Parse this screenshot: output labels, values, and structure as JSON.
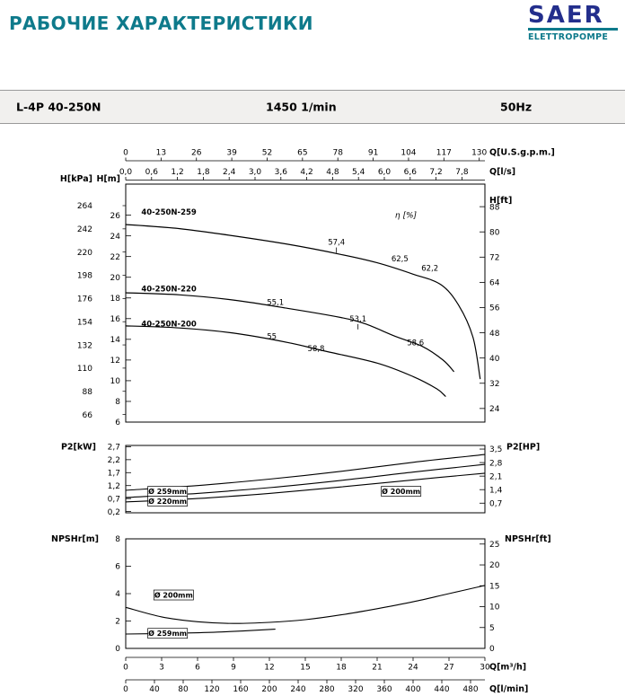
{
  "meta": {
    "title": "РАБОЧИЕ ХАРАКТЕРИСТИКИ",
    "logo": {
      "name": "SAER",
      "sub": "ELETTROPOMPE"
    },
    "header": {
      "model": "L-4P 40-250N",
      "speed": "1450 1/min",
      "frequency": "50Hz"
    },
    "colors": {
      "accent_teal": "#0e7a8b",
      "logo_blue": "#232e8c",
      "line": "#000000",
      "header_bg": "#f1f0ee"
    }
  },
  "chart_data": [
    {
      "id": "head-flow",
      "type": "line",
      "x_domain_m3h": [
        0,
        30
      ],
      "y_domain_m": [
        6,
        29
      ],
      "axes": {
        "top_gpm": {
          "title": "Q[U.S.g.p.m.]",
          "to_m3h": 0.227125,
          "values": [
            0,
            13,
            26,
            39,
            52,
            65,
            78,
            91,
            104,
            117,
            130
          ]
        },
        "top_ls": {
          "title": "Q[l/s]",
          "to_m3h": 3.6,
          "values": [
            0,
            0.6,
            1.2,
            1.8,
            2.4,
            3,
            3.6,
            4.2,
            4.8,
            5.4,
            6,
            6.6,
            7.2,
            7.8
          ],
          "labels": [
            "0,0",
            "0,6",
            "1,2",
            "1,8",
            "2,4",
            "3,0",
            "3,6",
            "4,2",
            "4,8",
            "5,4",
            "6,0",
            "6,6",
            "7,2",
            "7,8"
          ]
        },
        "left_kpa": {
          "title": "H[kPa]",
          "to_m": 0.101972,
          "values": [
            66,
            88,
            110,
            132,
            154,
            176,
            198,
            220,
            242,
            264
          ]
        },
        "left_m": {
          "title": "H[m]",
          "values": [
            6,
            8,
            10,
            12,
            14,
            16,
            18,
            20,
            22,
            24,
            26
          ]
        },
        "right_ft": {
          "title": "H[ft]",
          "to_m": 0.3048,
          "values": [
            24,
            32,
            40,
            48,
            56,
            64,
            72,
            80,
            88
          ]
        }
      },
      "series": [
        {
          "name": "40-250N-259",
          "points": [
            [
              0,
              25.1
            ],
            [
              4.5,
              24.7
            ],
            [
              9,
              24.0
            ],
            [
              13.5,
              23.2
            ],
            [
              18,
              22.2
            ],
            [
              21,
              21.4
            ],
            [
              24,
              20.3
            ],
            [
              26.3,
              19.3
            ],
            [
              27.8,
              17.3
            ],
            [
              29,
              14.2
            ],
            [
              29.6,
              10.2
            ]
          ]
        },
        {
          "name": "40-250N-220",
          "points": [
            [
              0,
              18.5
            ],
            [
              4.5,
              18.3
            ],
            [
              9,
              17.8
            ],
            [
              13.5,
              17.0
            ],
            [
              18,
              16.1
            ],
            [
              20,
              15.5
            ],
            [
              22.5,
              14.3
            ],
            [
              24.8,
              13.3
            ],
            [
              26.5,
              12.0
            ],
            [
              27.4,
              10.9
            ]
          ]
        },
        {
          "name": "40-250N-200",
          "points": [
            [
              0,
              15.3
            ],
            [
              4.5,
              15.1
            ],
            [
              9,
              14.6
            ],
            [
              13.5,
              13.7
            ],
            [
              16.5,
              12.9
            ],
            [
              21,
              11.7
            ],
            [
              24,
              10.4
            ],
            [
              26,
              9.2
            ],
            [
              26.7,
              8.5
            ]
          ]
        }
      ],
      "curve_labels": [
        {
          "text": "40-250N-259",
          "q": 1.3,
          "v": 26.3
        },
        {
          "text": "40-250N-220",
          "q": 1.3,
          "v": 18.9
        },
        {
          "text": "40-250N-200",
          "q": 1.3,
          "v": 15.5
        }
      ],
      "eta_label": {
        "text": "η [%]",
        "q": 23.4,
        "v": 26.0
      },
      "efficiency_points": [
        {
          "text": "57,4",
          "q": 17.6,
          "v": 23.4,
          "tick": true
        },
        {
          "text": "62,5",
          "q": 22.9,
          "v": 21.8
        },
        {
          "text": "62,2",
          "q": 25.4,
          "v": 20.9
        },
        {
          "text": "55,1",
          "q": 12.5,
          "v": 17.6
        },
        {
          "text": "53,1",
          "q": 19.4,
          "v": 16.0,
          "tick": true
        },
        {
          "text": "55",
          "q": 12.2,
          "v": 14.3
        },
        {
          "text": "58,8",
          "q": 15.9,
          "v": 13.1
        },
        {
          "text": "58,6",
          "q": 24.2,
          "v": 13.7
        }
      ]
    },
    {
      "id": "power",
      "type": "line",
      "y_domain_kw": [
        0.15,
        2.75
      ],
      "axes": {
        "left_kw": {
          "title": "P2[kW]",
          "values": [
            0.2,
            0.7,
            1.2,
            1.7,
            2.2,
            2.7
          ],
          "labels": [
            "0,2",
            "0,7",
            "1,2",
            "1,7",
            "2,2",
            "2,7"
          ]
        },
        "right_hp": {
          "title": "P2[HP]",
          "to_left": 0.7457,
          "values": [
            0.7,
            1.4,
            2.1,
            2.8,
            3.5
          ],
          "labels": [
            "0,7",
            "1,4",
            "2,1",
            "2,8",
            "3,5"
          ]
        }
      },
      "series": [
        {
          "name": "Ø 259mm",
          "points": [
            [
              0,
              1.02
            ],
            [
              6,
              1.2
            ],
            [
              12,
              1.45
            ],
            [
              18,
              1.75
            ],
            [
              24,
              2.1
            ],
            [
              30,
              2.4
            ]
          ]
        },
        {
          "name": "Ø 220mm",
          "points": [
            [
              0,
              0.74
            ],
            [
              6,
              0.9
            ],
            [
              12,
              1.12
            ],
            [
              18,
              1.4
            ],
            [
              24,
              1.72
            ],
            [
              30,
              2.02
            ]
          ]
        },
        {
          "name": "Ø 200mm",
          "points": [
            [
              0,
              0.57
            ],
            [
              6,
              0.7
            ],
            [
              12,
              0.9
            ],
            [
              18,
              1.15
            ],
            [
              24,
              1.42
            ],
            [
              30,
              1.68
            ]
          ]
        }
      ],
      "boxed_labels": [
        {
          "text": "Ø 259mm",
          "q": 3.5,
          "v": 0.98
        },
        {
          "text": "Ø 220mm",
          "q": 3.5,
          "v": 0.6
        },
        {
          "text": "Ø 200mm",
          "q": 23,
          "v": 0.98
        }
      ]
    },
    {
      "id": "npshr",
      "type": "line",
      "y_domain_m": [
        0,
        8
      ],
      "axes": {
        "left_m": {
          "title": "NPSHr[m]",
          "values": [
            0,
            2,
            4,
            6,
            8
          ]
        },
        "right_ft": {
          "title": "NPSHr[ft]",
          "to_left": 0.3048,
          "values": [
            0,
            5,
            10,
            15,
            20,
            25
          ]
        }
      },
      "series": [
        {
          "name": "Ø 200mm",
          "points": [
            [
              0,
              3.0
            ],
            [
              3,
              2.3
            ],
            [
              6,
              1.95
            ],
            [
              9,
              1.82
            ],
            [
              12,
              1.9
            ],
            [
              15,
              2.1
            ],
            [
              18,
              2.45
            ],
            [
              21,
              2.9
            ],
            [
              24,
              3.4
            ],
            [
              27,
              4.0
            ],
            [
              30,
              4.6
            ]
          ]
        },
        {
          "name": "Ø 259mm",
          "points": [
            [
              0,
              1.05
            ],
            [
              4,
              1.1
            ],
            [
              8,
              1.2
            ],
            [
              12.5,
              1.4
            ]
          ]
        }
      ],
      "boxed_labels": [
        {
          "text": "Ø 200mm",
          "q": 4,
          "v": 3.9
        },
        {
          "text": "Ø 259mm",
          "q": 3.5,
          "v": 1.1
        }
      ]
    }
  ],
  "bottom_axes": {
    "m3h": {
      "title": "Q[m³/h]",
      "values": [
        0,
        3,
        6,
        9,
        12,
        15,
        18,
        21,
        24,
        27,
        30
      ]
    },
    "lmin": {
      "title": "Q[l/min]",
      "to_m3h": 0.06,
      "values": [
        0,
        40,
        80,
        120,
        160,
        200,
        240,
        280,
        320,
        360,
        400,
        440,
        480
      ]
    }
  }
}
